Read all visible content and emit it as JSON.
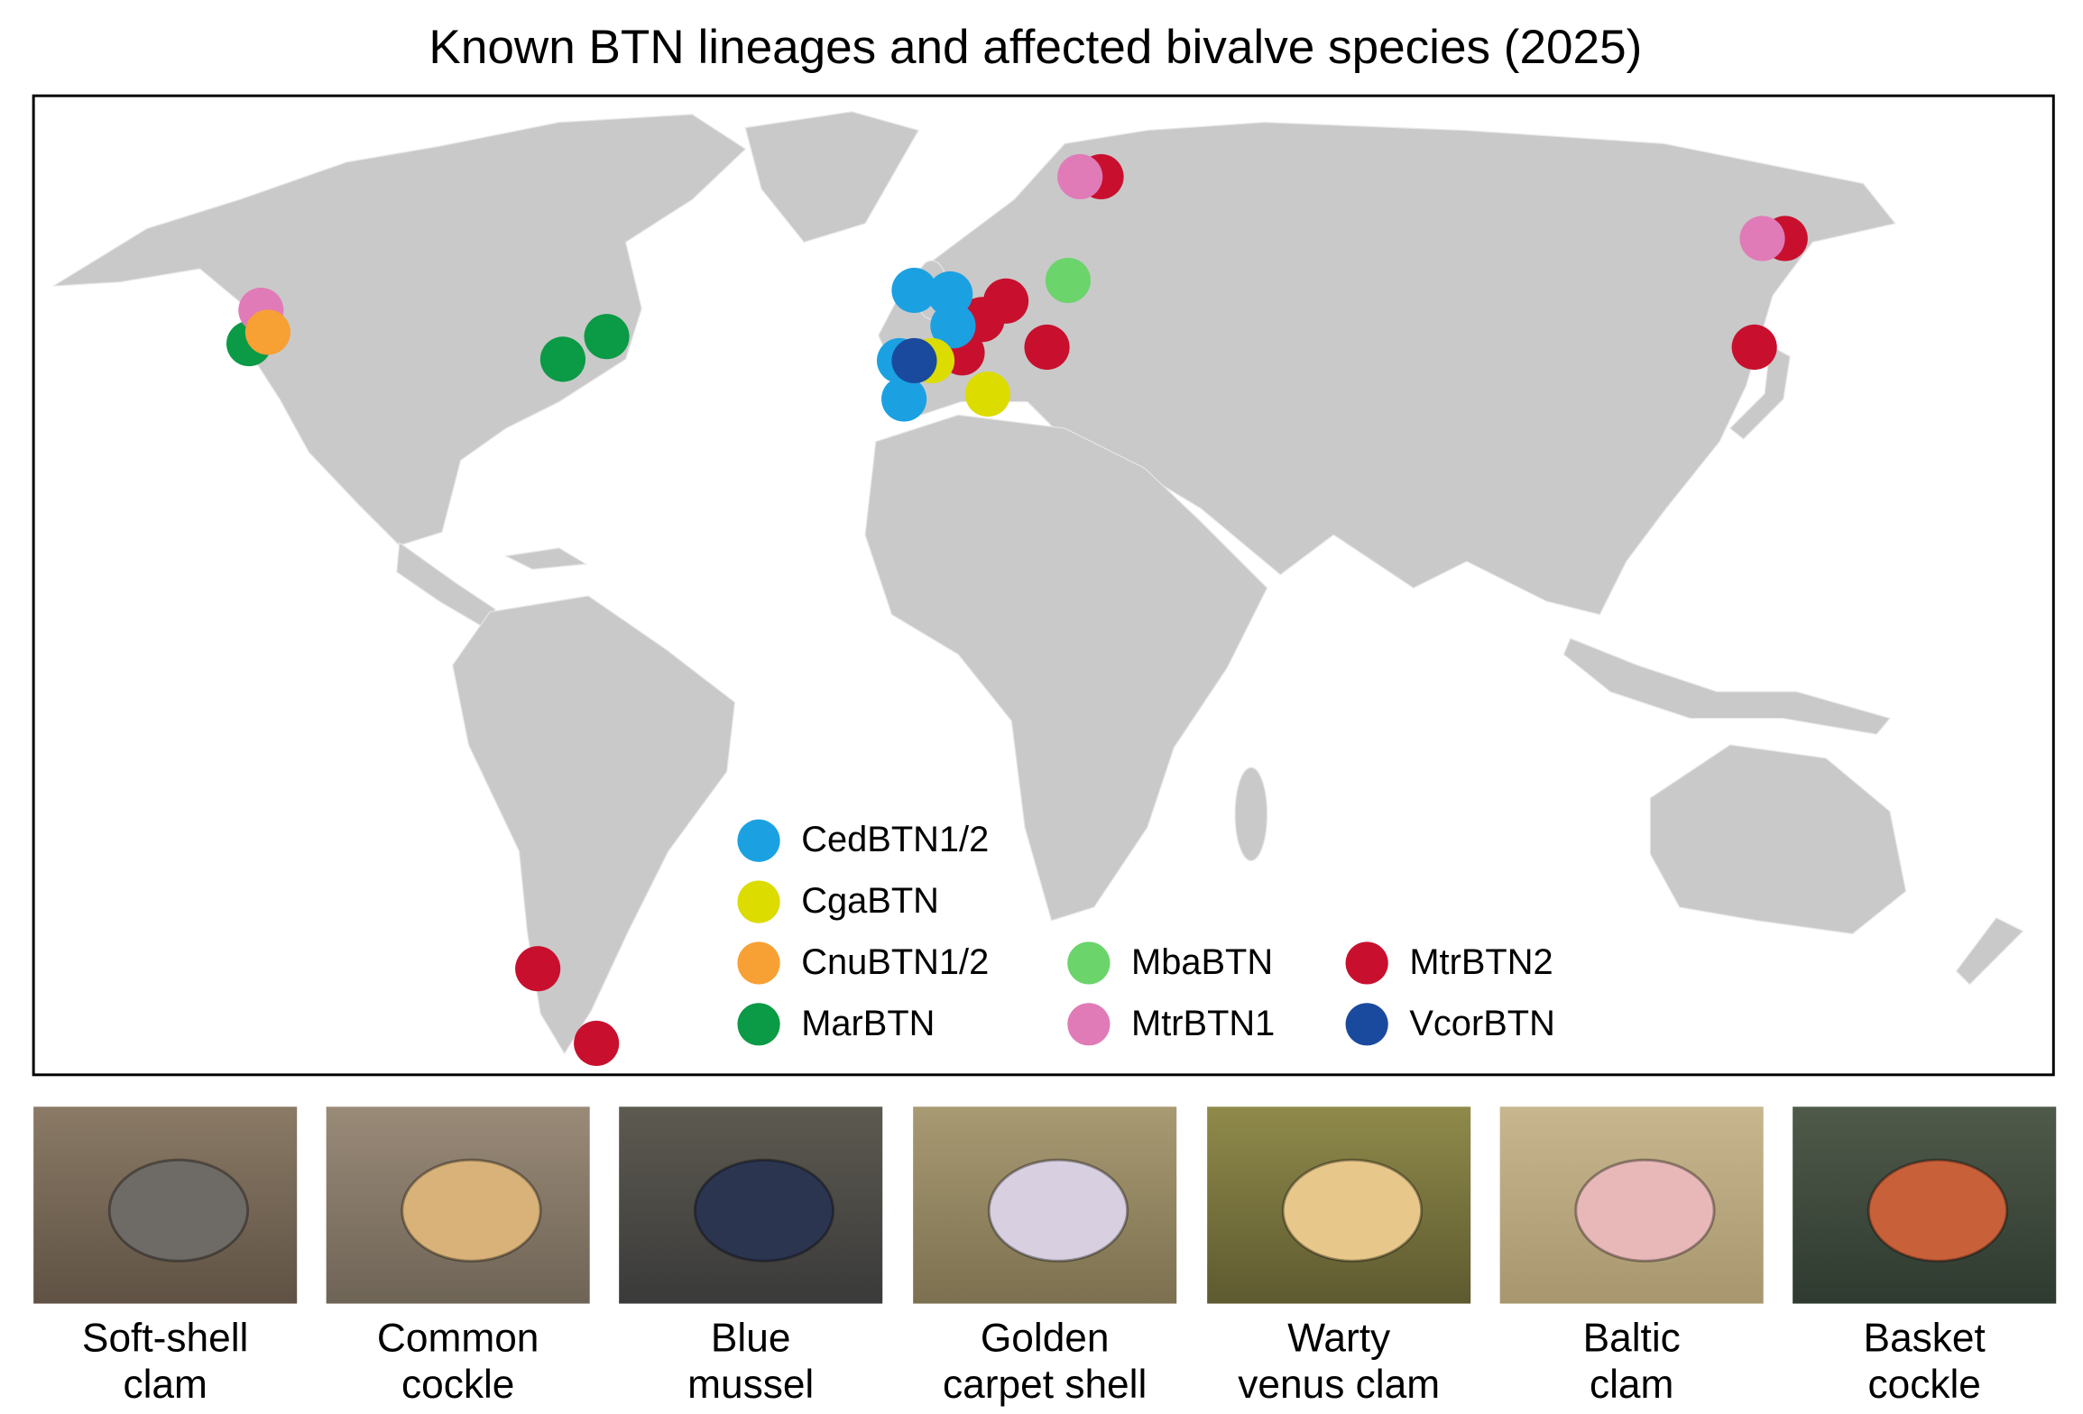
{
  "title": "Known BTN lineages and affected bivalve species (2025)",
  "lineages": [
    {
      "name": "CedBTN1/2",
      "color": "#1ba1e2"
    },
    {
      "name": "CgaBTN",
      "color": "#dcdc00"
    },
    {
      "name": "CnuBTN1/2",
      "color": "#f7a033"
    },
    {
      "name": "MarBTN",
      "color": "#0b9a45"
    },
    {
      "name": "MbaBTN",
      "color": "#6bd46b"
    },
    {
      "name": "MtrBTN1",
      "color": "#e07bb8"
    },
    {
      "name": "MtrBTN2",
      "color": "#c8102e"
    },
    {
      "name": "VcorBTN",
      "color": "#1a4a9e"
    }
  ],
  "sites": [
    {
      "lineage": 3,
      "lon": -124.7,
      "lat": 45.2
    },
    {
      "lineage": 5,
      "lon": -122.6,
      "lat": 49.9
    },
    {
      "lineage": 2,
      "lon": -121.4,
      "lat": 46.8
    },
    {
      "lineage": 3,
      "lon": -69.6,
      "lat": 43.0
    },
    {
      "lineage": 3,
      "lon": -61.9,
      "lat": 46.2
    },
    {
      "lineage": 6,
      "lon": 0.5,
      "lat": 43.9
    },
    {
      "lineage": 6,
      "lon": 4.0,
      "lat": 48.6
    },
    {
      "lineage": 6,
      "lon": 8.2,
      "lat": 51.2
    },
    {
      "lineage": 6,
      "lon": 15.4,
      "lat": 44.7
    },
    {
      "lineage": 0,
      "lon": -7.9,
      "lat": 52.7
    },
    {
      "lineage": 0,
      "lon": -1.6,
      "lat": 52.2
    },
    {
      "lineage": 0,
      "lon": -1.1,
      "lat": 47.7
    },
    {
      "lineage": 1,
      "lon": -4.8,
      "lat": 42.8
    },
    {
      "lineage": 0,
      "lon": -10.5,
      "lat": 42.8
    },
    {
      "lineage": 0,
      "lon": -9.7,
      "lat": 37.4
    },
    {
      "lineage": 7,
      "lon": -7.9,
      "lat": 42.8
    },
    {
      "lineage": 1,
      "lon": 5.0,
      "lat": 38.1
    },
    {
      "lineage": 4,
      "lon": 19.1,
      "lat": 54.1
    },
    {
      "lineage": 6,
      "lon": 24.9,
      "lat": 68.7
    },
    {
      "lineage": 5,
      "lon": 21.2,
      "lat": 68.7
    },
    {
      "lineage": 6,
      "lon": 145.0,
      "lat": 60.0
    },
    {
      "lineage": 5,
      "lon": 141.0,
      "lat": 60.0
    },
    {
      "lineage": 6,
      "lon": 139.6,
      "lat": 44.7
    },
    {
      "lineage": 6,
      "lon": -74.0,
      "lat": -42.8
    },
    {
      "lineage": 6,
      "lon": -63.7,
      "lat": -53.3
    }
  ],
  "species": [
    {
      "caption": [
        "Soft-shell",
        "clam"
      ]
    },
    {
      "caption": [
        "Common",
        "cockle"
      ]
    },
    {
      "caption": [
        "Blue",
        "mussel"
      ]
    },
    {
      "caption": [
        "Golden",
        "carpet shell"
      ]
    },
    {
      "caption": [
        "Warty",
        "venus clam"
      ]
    },
    {
      "caption": [
        "Baltic",
        "clam"
      ]
    },
    {
      "caption": [
        "Basket",
        "cockle"
      ]
    }
  ]
}
